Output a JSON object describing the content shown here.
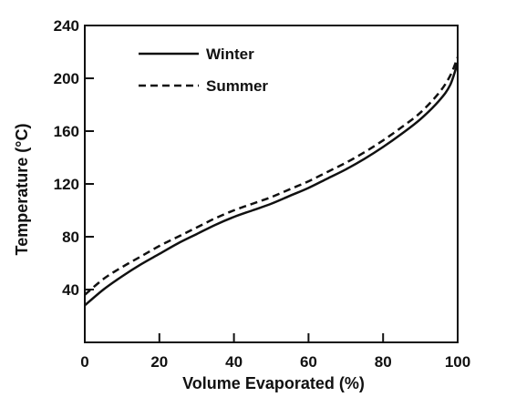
{
  "chart_data": {
    "type": "line",
    "xlabel": "Volume Evaporated (%)",
    "ylabel": "Temperature (°C)",
    "xlim": [
      0,
      100
    ],
    "ylim": [
      0,
      240
    ],
    "x_ticks": [
      0,
      20,
      40,
      60,
      80,
      100
    ],
    "y_ticks": [
      40,
      80,
      120,
      160,
      200,
      240
    ],
    "x_tick_labels": [
      "0",
      "20",
      "40",
      "60",
      "80",
      "100"
    ],
    "y_tick_labels": [
      "40",
      "80",
      "120",
      "160",
      "200",
      "240"
    ],
    "grid": false,
    "legend_position": "top-left",
    "series": [
      {
        "name": "Winter",
        "style": "solid",
        "x": [
          0,
          5,
          10,
          15,
          20,
          25,
          30,
          35,
          40,
          45,
          50,
          55,
          60,
          65,
          70,
          75,
          80,
          85,
          90,
          95,
          98,
          100
        ],
        "y": [
          28,
          40,
          50,
          59,
          67,
          75,
          82,
          89,
          95,
          100,
          105,
          111,
          117,
          124,
          131,
          139,
          148,
          158,
          169,
          183,
          195,
          212
        ]
      },
      {
        "name": "Summer",
        "style": "dashed",
        "x": [
          0,
          5,
          10,
          15,
          20,
          25,
          30,
          35,
          40,
          45,
          50,
          55,
          60,
          65,
          70,
          75,
          80,
          85,
          90,
          95,
          98,
          100
        ],
        "y": [
          36,
          48,
          57,
          65,
          73,
          80,
          87,
          94,
          100,
          105,
          110,
          116,
          122,
          129,
          136,
          144,
          153,
          163,
          174,
          189,
          202,
          216
        ]
      }
    ]
  }
}
